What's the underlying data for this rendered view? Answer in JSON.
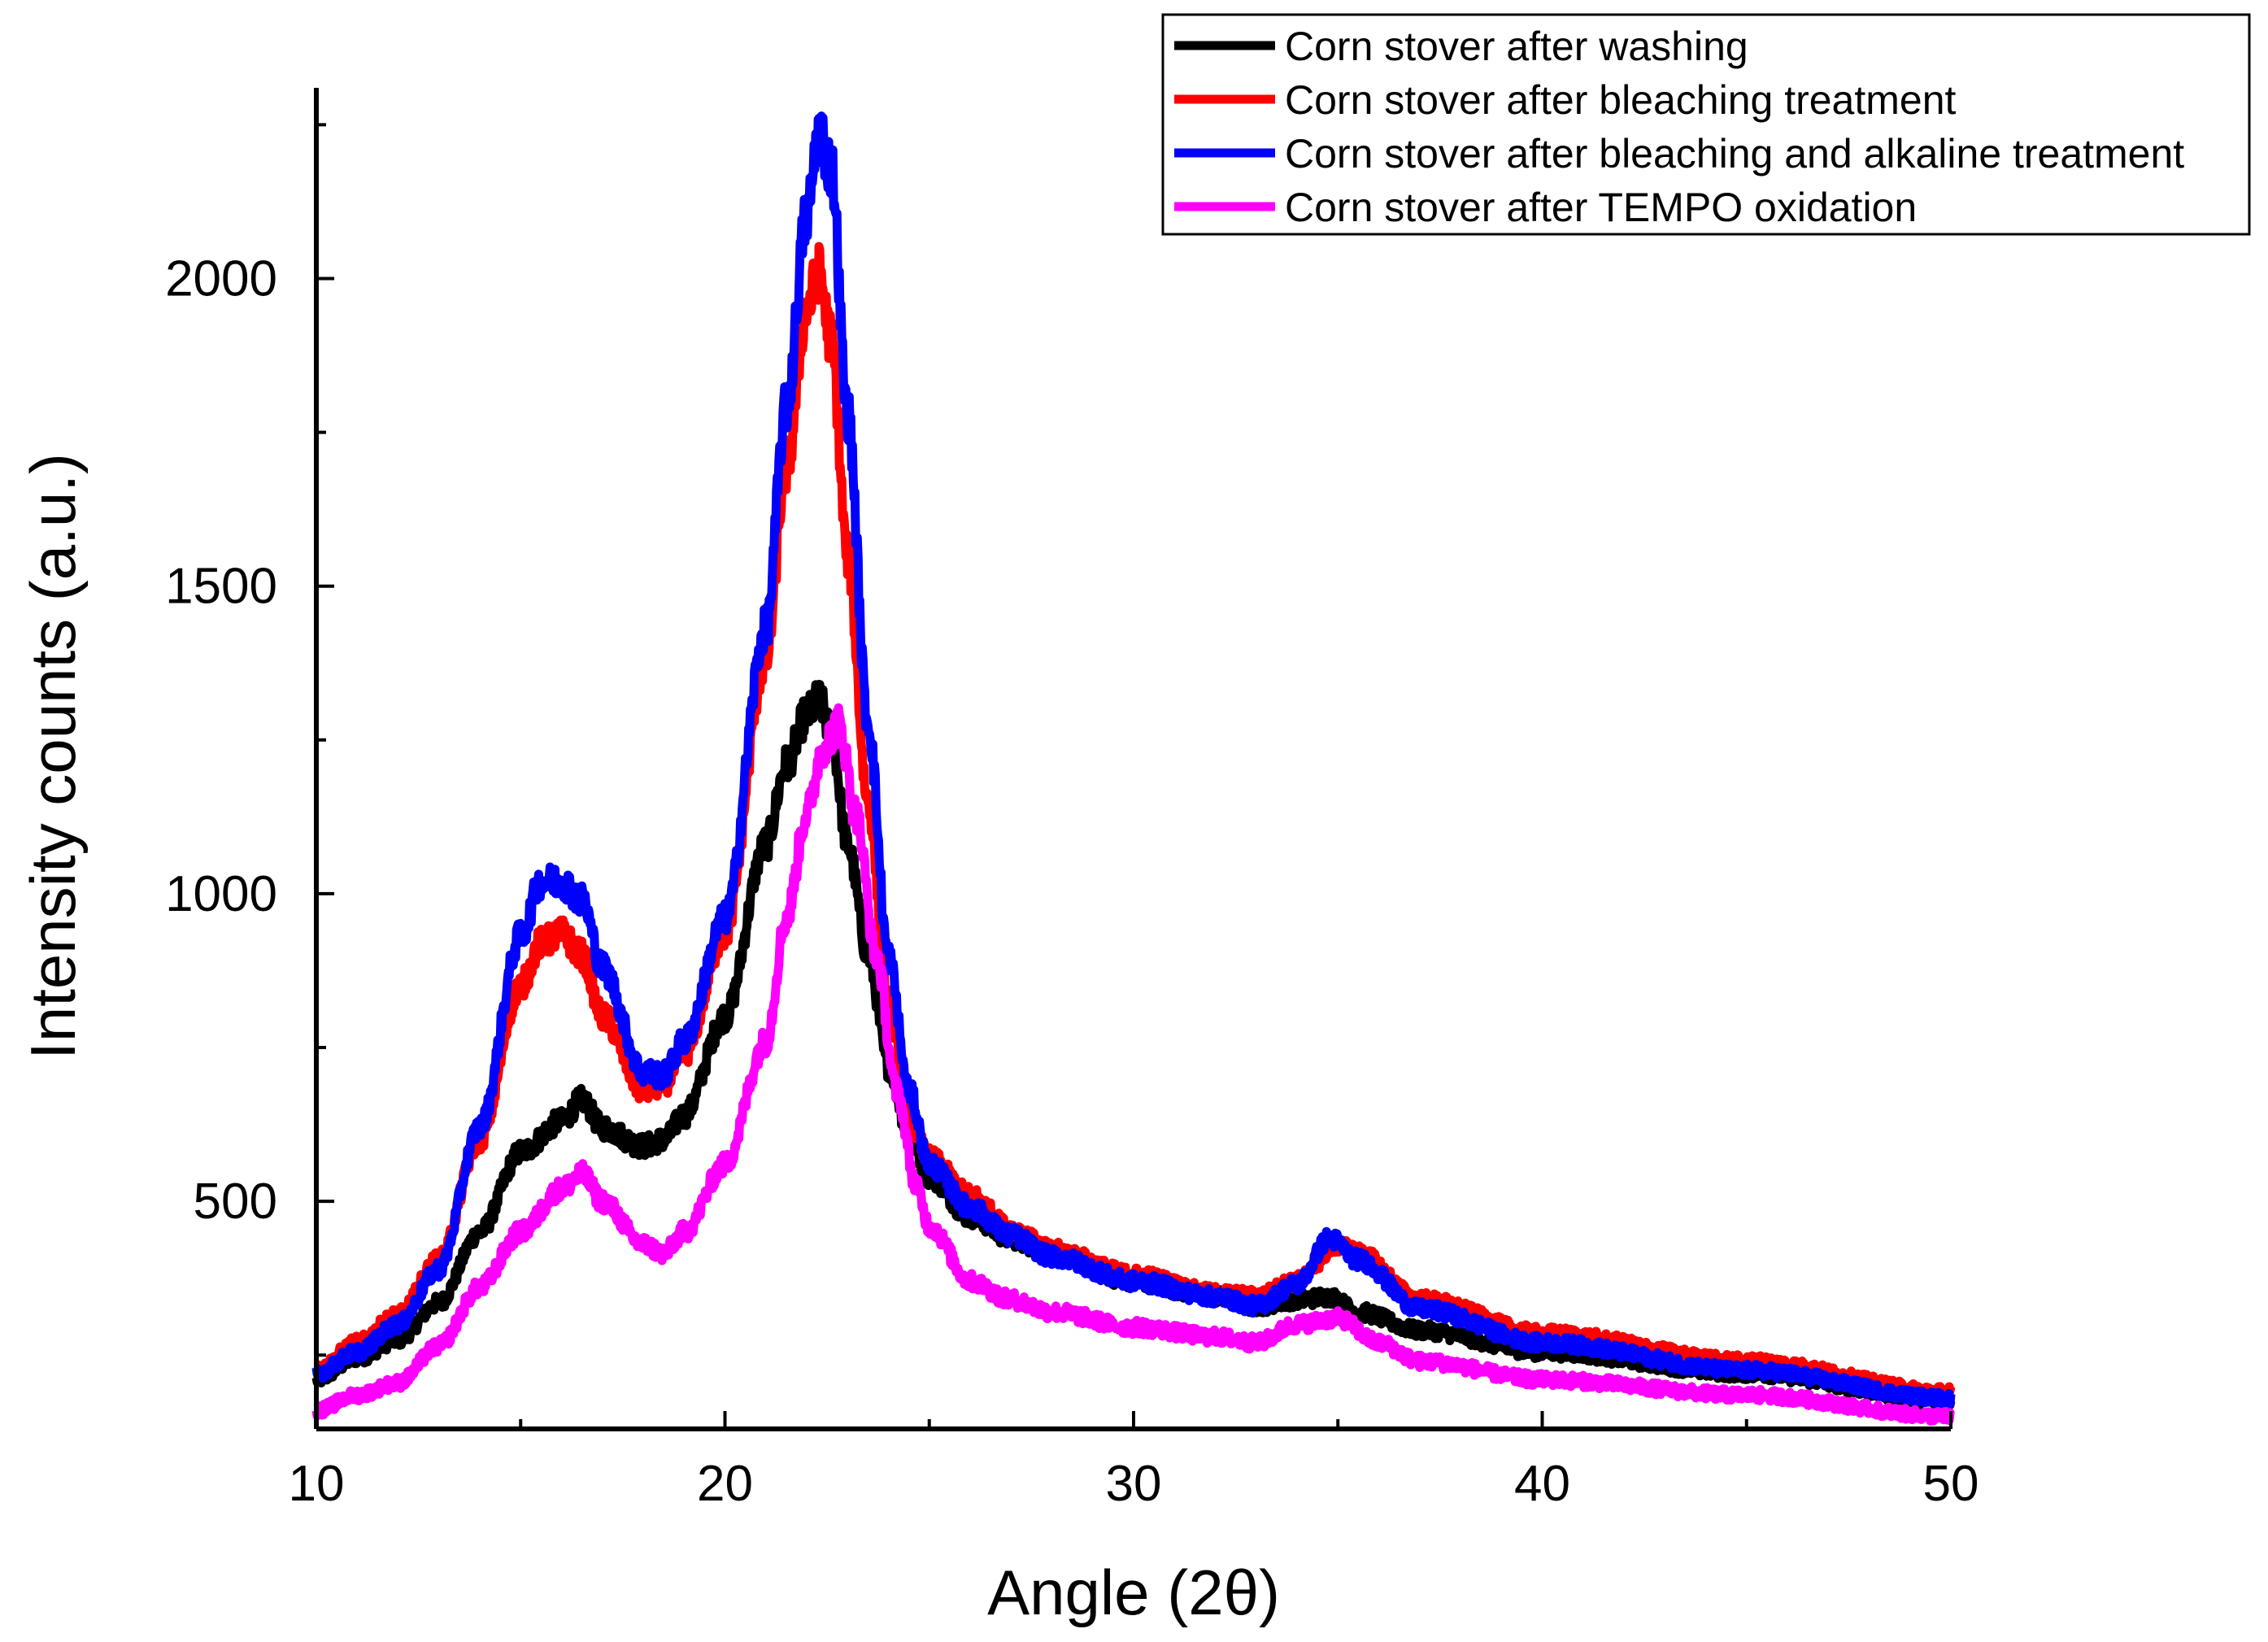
{
  "chart_data": {
    "type": "line",
    "title": "",
    "xlabel": "Angle (2θ)",
    "ylabel": "Intensity counts (a.u.)",
    "xlim": [
      10,
      50
    ],
    "ylim": [
      130,
      2310
    ],
    "x_ticks": [
      10,
      20,
      30,
      40,
      50
    ],
    "y_ticks": [
      500,
      1000,
      1500,
      2000
    ],
    "grid": false,
    "legend_position": "top-right",
    "series": [
      {
        "name": "Corn stover after washing",
        "color": "#000000",
        "x": [
          10,
          11,
          12,
          13,
          14,
          15,
          16,
          16.5,
          17,
          18,
          18.5,
          19,
          20,
          21,
          21.5,
          22,
          22.3,
          22.6,
          23,
          23.5,
          24,
          24.5,
          25,
          26,
          27,
          28,
          30,
          32,
          33,
          34,
          34.8,
          35.5,
          37,
          40,
          45,
          50
        ],
        "values": [
          210,
          245,
          275,
          335,
          450,
          580,
          630,
          665,
          620,
          590,
          600,
          640,
          800,
          1080,
          1210,
          1290,
          1315,
          1260,
          1080,
          900,
          720,
          610,
          540,
          475,
          440,
          415,
          370,
          345,
          330,
          340,
          345,
          320,
          290,
          255,
          220,
          175
        ]
      },
      {
        "name": "Corn stover after bleaching treatment",
        "color": "#ff0000",
        "x": [
          10,
          11,
          12,
          13,
          14,
          15,
          15.5,
          16,
          16.5,
          17,
          18,
          18.5,
          19,
          20,
          21,
          21.5,
          22,
          22.3,
          22.6,
          23,
          23.5,
          24,
          24.5,
          25,
          26,
          27,
          28,
          30,
          32,
          33,
          34,
          35,
          35.5,
          37,
          40,
          45,
          50
        ],
        "values": [
          225,
          270,
          315,
          405,
          600,
          850,
          920,
          935,
          900,
          800,
          680,
          690,
          740,
          935,
          1380,
          1690,
          1950,
          2010,
          1900,
          1550,
          1150,
          820,
          640,
          570,
          510,
          455,
          420,
          380,
          350,
          345,
          370,
          430,
          415,
          340,
          285,
          240,
          190
        ]
      },
      {
        "name": "Corn stover after bleaching and alkaline treatment",
        "color": "#0000ff",
        "x": [
          10,
          11,
          12,
          13,
          14,
          15,
          15.5,
          16,
          16.5,
          17,
          18,
          18.5,
          19,
          20,
          21,
          21.5,
          22,
          22.3,
          22.6,
          23,
          23.5,
          24,
          24.5,
          25,
          26,
          27,
          28,
          30,
          32,
          33,
          34,
          34.8,
          35.5,
          37,
          40,
          45,
          50
        ],
        "values": [
          220,
          255,
          300,
          390,
          620,
          930,
          1020,
          1020,
          990,
          880,
          710,
          705,
          760,
          960,
          1430,
          1790,
          2100,
          2240,
          2180,
          1780,
          1280,
          900,
          680,
          560,
          490,
          445,
          410,
          370,
          345,
          330,
          365,
          440,
          405,
          325,
          270,
          225,
          180
        ]
      },
      {
        "name": "Corn stover after TEMPO oxidation",
        "color": "#ff00ff",
        "x": [
          10,
          11,
          12,
          13,
          14,
          15,
          16,
          16.5,
          17,
          18,
          18.5,
          19,
          20,
          21,
          21.5,
          22,
          22.4,
          22.8,
          23.2,
          23.7,
          24.2,
          24.7,
          25,
          26,
          27,
          28,
          30,
          32,
          33,
          34,
          35,
          36,
          37,
          40,
          45,
          50
        ],
        "values": [
          160,
          185,
          205,
          265,
          360,
          450,
          520,
          545,
          500,
          430,
          415,
          450,
          560,
          760,
          960,
          1130,
          1240,
          1275,
          1130,
          900,
          680,
          520,
          460,
          370,
          340,
          320,
          295,
          280,
          270,
          300,
          310,
          270,
          240,
          210,
          185,
          150
        ]
      }
    ]
  }
}
